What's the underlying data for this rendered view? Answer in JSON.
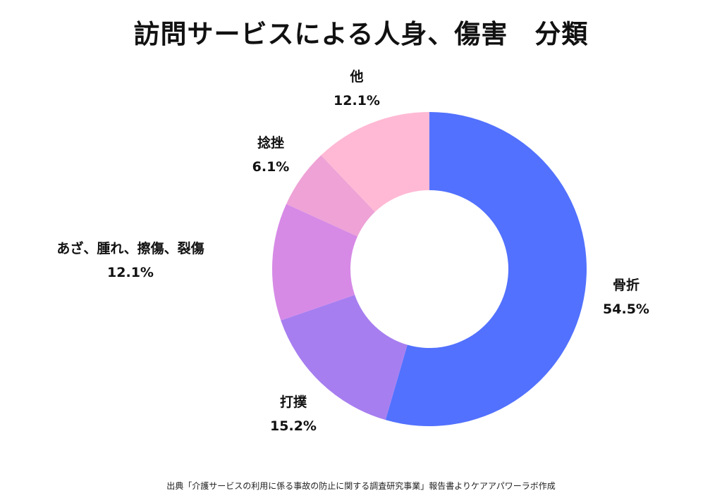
{
  "chart_data": {
    "type": "pie",
    "title": "訪問サービスによる人身、傷害　分類",
    "categories": [
      "骨折",
      "打撲",
      "あざ、腫れ、擦傷、裂傷",
      "捻挫",
      "他"
    ],
    "values": [
      54.5,
      15.2,
      12.1,
      6.1,
      12.1
    ],
    "value_labels": [
      "54.5%",
      "15.2%",
      "12.1%",
      "6.1%",
      "12.1%"
    ],
    "colors": [
      "#5271ff",
      "#a77ef0",
      "#d68ae6",
      "#eea2d6",
      "#ffb9d4"
    ],
    "hole": "donut"
  },
  "source": "出典「介護サービスの利用に係る事故の防止に関する調査研究事業」報告書よりケアアパワーラボ作成"
}
